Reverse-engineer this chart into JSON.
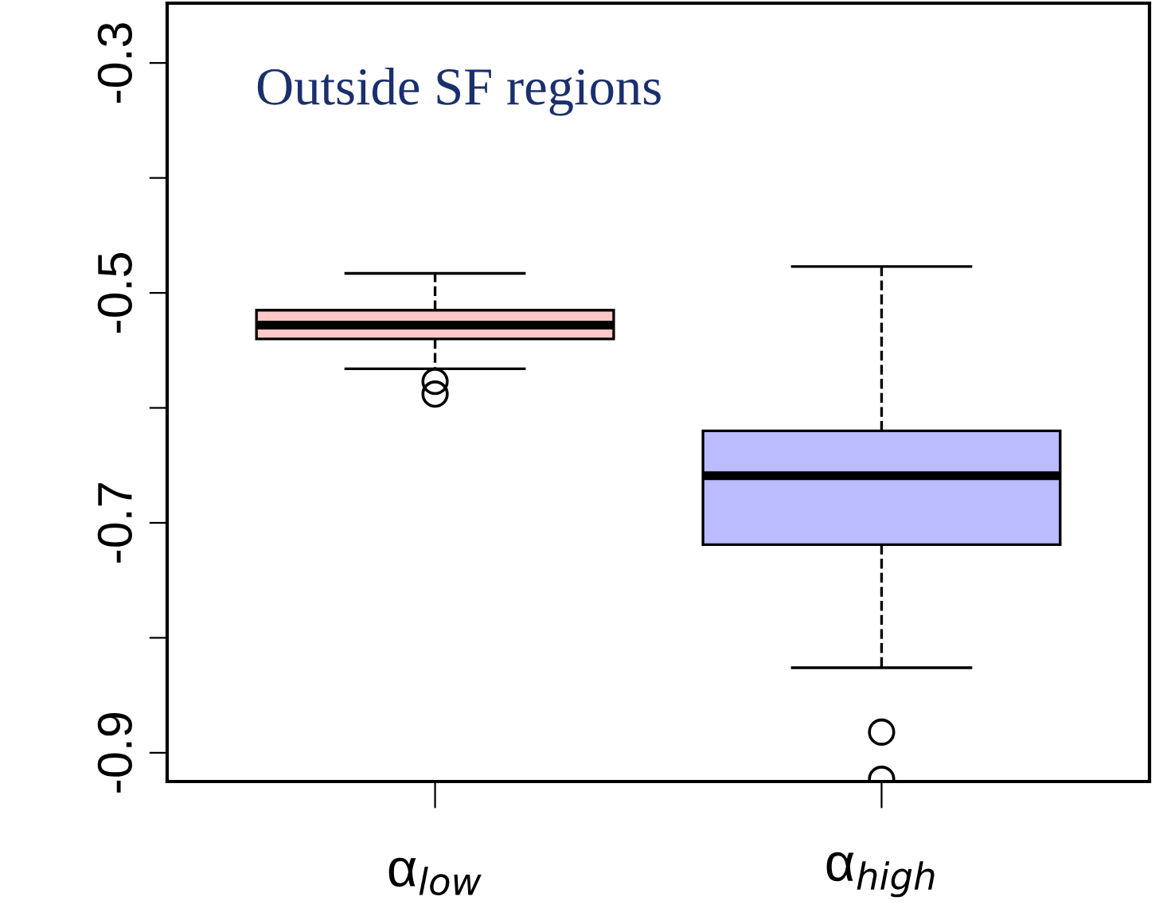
{
  "chart_data": {
    "type": "box",
    "categories": [
      "α$_{low}$",
      "α$_{high}$"
    ],
    "boxes": [
      {
        "low": -0.566,
        "q1": -0.54,
        "median": -0.528,
        "q3": -0.515,
        "high": -0.483,
        "outliers": [
          -0.577,
          -0.588
        ]
      },
      {
        "low": -0.826,
        "q1": -0.719,
        "median": -0.659,
        "q3": -0.62,
        "high": -0.477,
        "outliers": [
          -0.882,
          -0.923
        ]
      }
    ],
    "colors": [
      "#ffc8c8",
      "#bbbbff"
    ],
    "ylim": [
      -0.925,
      -0.248
    ],
    "yticks": [
      -0.3,
      {
        "value": -0.4,
        "label": null
      },
      -0.5,
      {
        "value": -0.6,
        "label": null
      },
      -0.7,
      {
        "value": -0.8,
        "label": null
      },
      -0.9
    ],
    "annotations": [
      "Outside SF regions"
    ],
    "grid": false,
    "legend": false
  }
}
